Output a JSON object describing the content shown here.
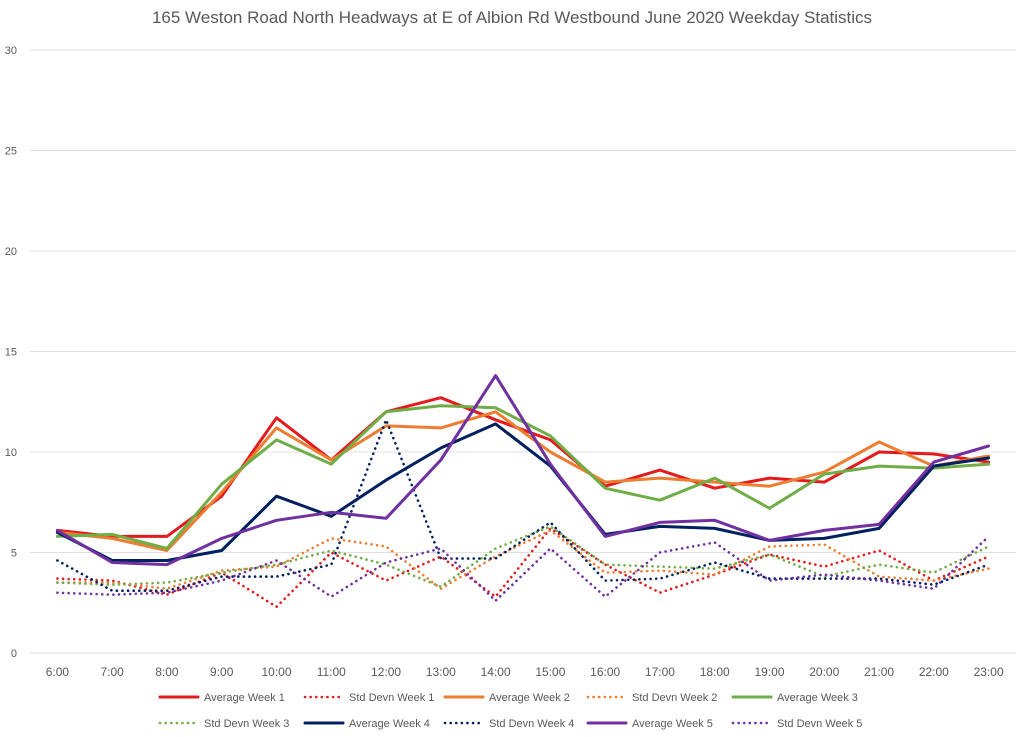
{
  "chart_data": {
    "type": "line",
    "title": "165 Weston Road North Headways at E of Albion Rd Westbound June 2020 Weekday Statistics",
    "xlabel": "",
    "ylabel": "",
    "ylim": [
      0,
      30
    ],
    "yticks": [
      0,
      5,
      10,
      15,
      20,
      25,
      30
    ],
    "grid": true,
    "legend_position": "bottom",
    "categories": [
      "6:00",
      "7:00",
      "8:00",
      "9:00",
      "10:00",
      "11:00",
      "12:00",
      "13:00",
      "14:00",
      "15:00",
      "16:00",
      "17:00",
      "18:00",
      "19:00",
      "20:00",
      "21:00",
      "22:00",
      "23:00"
    ],
    "series": [
      {
        "name": "Average Week 1",
        "style": "solid",
        "color": "#e41a1c",
        "values": [
          6.1,
          5.8,
          5.8,
          7.8,
          11.7,
          9.6,
          12.0,
          12.7,
          11.6,
          10.6,
          8.3,
          9.1,
          8.2,
          8.7,
          8.5,
          10.0,
          9.9,
          9.5
        ]
      },
      {
        "name": "Std Devn Week 1",
        "style": "dotted",
        "color": "#e41a1c",
        "values": [
          3.7,
          3.6,
          2.9,
          4.0,
          2.3,
          5.0,
          3.6,
          4.8,
          2.8,
          6.2,
          4.4,
          3.0,
          3.9,
          4.9,
          4.3,
          5.1,
          3.6,
          4.8
        ]
      },
      {
        "name": "Average Week 2",
        "style": "solid",
        "color": "#ed7d31",
        "values": [
          6.0,
          5.7,
          5.1,
          8.0,
          11.2,
          9.6,
          11.3,
          11.2,
          12.0,
          10.0,
          8.5,
          8.7,
          8.5,
          8.3,
          9.0,
          10.5,
          9.3,
          9.8
        ]
      },
      {
        "name": "Std Devn Week 2",
        "style": "dotted",
        "color": "#ed7d31",
        "values": [
          3.5,
          3.5,
          3.2,
          4.1,
          4.3,
          5.7,
          5.3,
          3.2,
          4.8,
          6.1,
          4.0,
          4.1,
          3.9,
          5.3,
          5.4,
          3.8,
          3.6,
          4.2
        ]
      },
      {
        "name": "Average Week 3",
        "style": "solid",
        "color": "#70ad47",
        "values": [
          5.8,
          5.9,
          5.2,
          8.4,
          10.6,
          9.4,
          12.0,
          12.3,
          12.2,
          10.8,
          8.2,
          7.6,
          8.7,
          7.2,
          8.9,
          9.3,
          9.2,
          9.4
        ]
      },
      {
        "name": "Std Devn Week 3",
        "style": "dotted",
        "color": "#70ad47",
        "values": [
          3.5,
          3.4,
          3.5,
          4.0,
          4.4,
          5.1,
          4.4,
          3.3,
          5.2,
          6.3,
          4.4,
          4.3,
          4.2,
          4.9,
          3.8,
          4.4,
          4.0,
          5.3
        ]
      },
      {
        "name": "Average Week 4",
        "style": "solid",
        "color": "#002060",
        "values": [
          6.0,
          4.6,
          4.6,
          5.1,
          7.8,
          6.8,
          8.6,
          10.2,
          11.4,
          9.3,
          5.9,
          6.3,
          6.2,
          5.6,
          5.7,
          6.2,
          9.3,
          9.7
        ]
      },
      {
        "name": "Std Devn Week 4",
        "style": "dotted",
        "color": "#002060",
        "values": [
          4.6,
          3.1,
          3.1,
          3.8,
          3.8,
          4.4,
          11.6,
          4.7,
          4.7,
          6.5,
          3.6,
          3.7,
          4.5,
          3.7,
          3.7,
          3.7,
          3.4,
          4.4
        ]
      },
      {
        "name": "Average Week 5",
        "style": "solid",
        "color": "#7030a0",
        "values": [
          6.1,
          4.5,
          4.4,
          5.7,
          6.6,
          7.0,
          6.7,
          9.6,
          13.8,
          9.4,
          5.8,
          6.5,
          6.6,
          5.6,
          6.1,
          6.4,
          9.5,
          10.3
        ]
      },
      {
        "name": "Std Devn Week 5",
        "style": "dotted",
        "color": "#7030a0",
        "values": [
          3.0,
          2.9,
          3.0,
          3.6,
          4.6,
          2.8,
          4.5,
          5.2,
          2.6,
          5.2,
          2.8,
          5.0,
          5.5,
          3.6,
          3.9,
          3.6,
          3.2,
          5.8
        ]
      }
    ]
  }
}
